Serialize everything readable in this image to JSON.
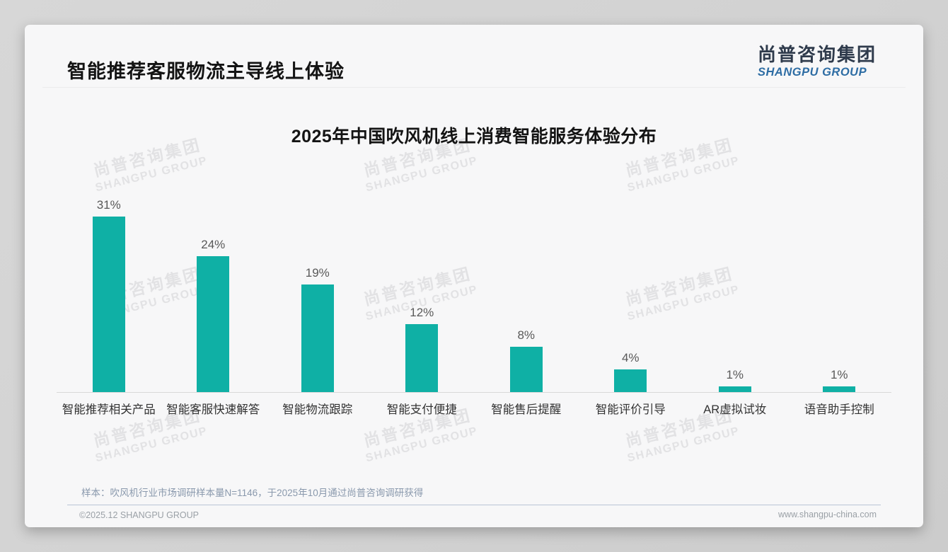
{
  "page": {
    "title": "智能推荐客服物流主导线上体验",
    "logo": {
      "cn": "尚普咨询集团",
      "en": "SHANGPU GROUP"
    },
    "note": "样本：吹风机行业市场调研样本量N=1146，于2025年10月通过尚普咨询调研获得",
    "footer": {
      "left": "©2025.12 SHANGPU GROUP",
      "right": "www.shangpu-china.com"
    },
    "watermark": {
      "cn": "尚普咨询集团",
      "en": "SHANGPU GROUP"
    }
  },
  "chart_data": {
    "type": "bar",
    "title": "2025年中国吹风机线上消费智能服务体验分布",
    "categories": [
      "智能推荐相关产品",
      "智能客服快速解答",
      "智能物流跟踪",
      "智能支付便捷",
      "智能售后提醒",
      "智能评价引导",
      "AR虚拟试妆",
      "语音助手控制"
    ],
    "values": [
      31,
      24,
      19,
      12,
      8,
      4,
      1,
      1
    ],
    "unit": "%",
    "xlabel": "",
    "ylabel": "",
    "ylim": [
      0,
      35
    ],
    "grid": false,
    "legend": "none",
    "data_labels": "above-bars",
    "bar_color": "#0fb0a5"
  },
  "colors": {
    "accent_teal": "#0fb0a5",
    "logo_navy": "#2f3b4c",
    "logo_blue": "#2e6da4",
    "note_text": "#8a99ad",
    "footer_separator": "#b9c4d6",
    "watermark": "#e2e2e4",
    "card_background": "#f7f7f8"
  }
}
